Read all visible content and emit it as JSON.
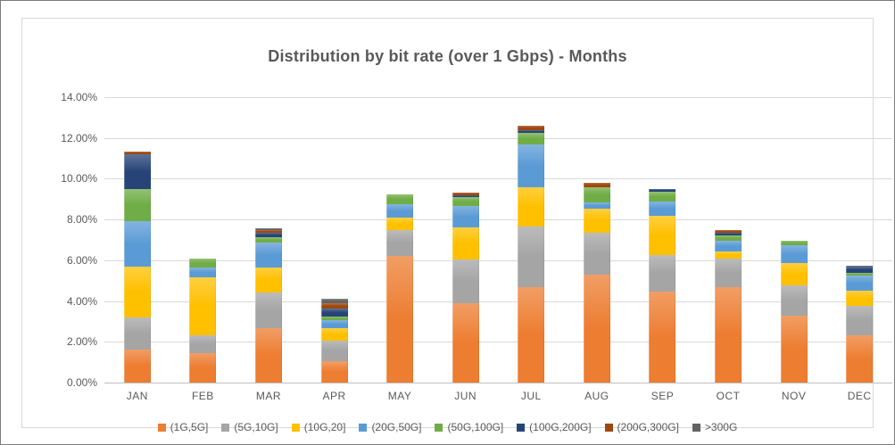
{
  "chart_data": {
    "type": "bar",
    "stacked": true,
    "title": "Distribution by bit rate (over 1 Gbps) - Months",
    "xlabel": "",
    "ylabel": "",
    "units": "%",
    "gridlines": true,
    "legend_position": "bottom",
    "categories": [
      "JAN",
      "FEB",
      "MAR",
      "APR",
      "MAY",
      "JUN",
      "JUL",
      "AUG",
      "SEP",
      "OCT",
      "NOV",
      "DEC"
    ],
    "series": [
      {
        "name": "(1G,5G]",
        "color": "#ED7D31",
        "values": [
          1.6,
          1.45,
          2.65,
          1.05,
          6.2,
          3.9,
          4.7,
          5.3,
          4.45,
          4.7,
          3.3,
          2.3
        ]
      },
      {
        "name": "(5G,10G]",
        "color": "#A5A5A5",
        "values": [
          1.6,
          0.85,
          1.75,
          1.0,
          1.3,
          2.15,
          2.95,
          2.05,
          1.8,
          1.4,
          1.45,
          1.45
        ]
      },
      {
        "name": "(10G,20]",
        "color": "#FFC000",
        "values": [
          2.5,
          2.85,
          1.25,
          0.6,
          0.6,
          1.55,
          1.95,
          1.2,
          1.95,
          0.35,
          1.1,
          0.75
        ]
      },
      {
        "name": "(20G,50G]",
        "color": "#5B9BD5",
        "values": [
          2.2,
          0.5,
          1.2,
          0.4,
          0.65,
          1.05,
          2.1,
          0.3,
          0.7,
          0.5,
          0.9,
          0.75
        ]
      },
      {
        "name": "(50G,100G]",
        "color": "#70AD47",
        "values": [
          1.6,
          0.45,
          0.3,
          0.2,
          0.5,
          0.45,
          0.55,
          0.75,
          0.45,
          0.25,
          0.2,
          0.15
        ]
      },
      {
        "name": "(100G,200G]",
        "color": "#264478",
        "values": [
          1.7,
          0.0,
          0.2,
          0.4,
          0.0,
          0.1,
          0.15,
          0.0,
          0.15,
          0.15,
          0.0,
          0.3
        ]
      },
      {
        "name": "(200G,300G]",
        "color": "#9E480E",
        "values": [
          0.15,
          0.0,
          0.15,
          0.25,
          0.0,
          0.1,
          0.2,
          0.2,
          0.0,
          0.15,
          0.0,
          0.0
        ]
      },
      {
        "name": ">300G",
        "color": "#636363",
        "values": [
          0.0,
          0.0,
          0.05,
          0.2,
          0.0,
          0.0,
          0.0,
          0.0,
          0.0,
          0.0,
          0.0,
          0.05
        ]
      }
    ],
    "totals": [
      11.35,
      6.1,
      7.55,
      4.1,
      9.25,
      9.3,
      12.6,
      9.8,
      9.5,
      7.5,
      6.95,
      5.75
    ],
    "y_axis": {
      "min": 0,
      "max": 14,
      "step": 2,
      "tick_labels": [
        "0.00%",
        "2.00%",
        "4.00%",
        "6.00%",
        "8.00%",
        "10.00%",
        "12.00%",
        "14.00%"
      ]
    }
  },
  "style": {
    "title_color": "#595959",
    "axis_text_color": "#595959",
    "gridline_color": "#D9D9D9",
    "axis_line_color": "#BFBFBF",
    "plot_border_color": "#D9D9D9",
    "background": "#FFFFFF"
  }
}
